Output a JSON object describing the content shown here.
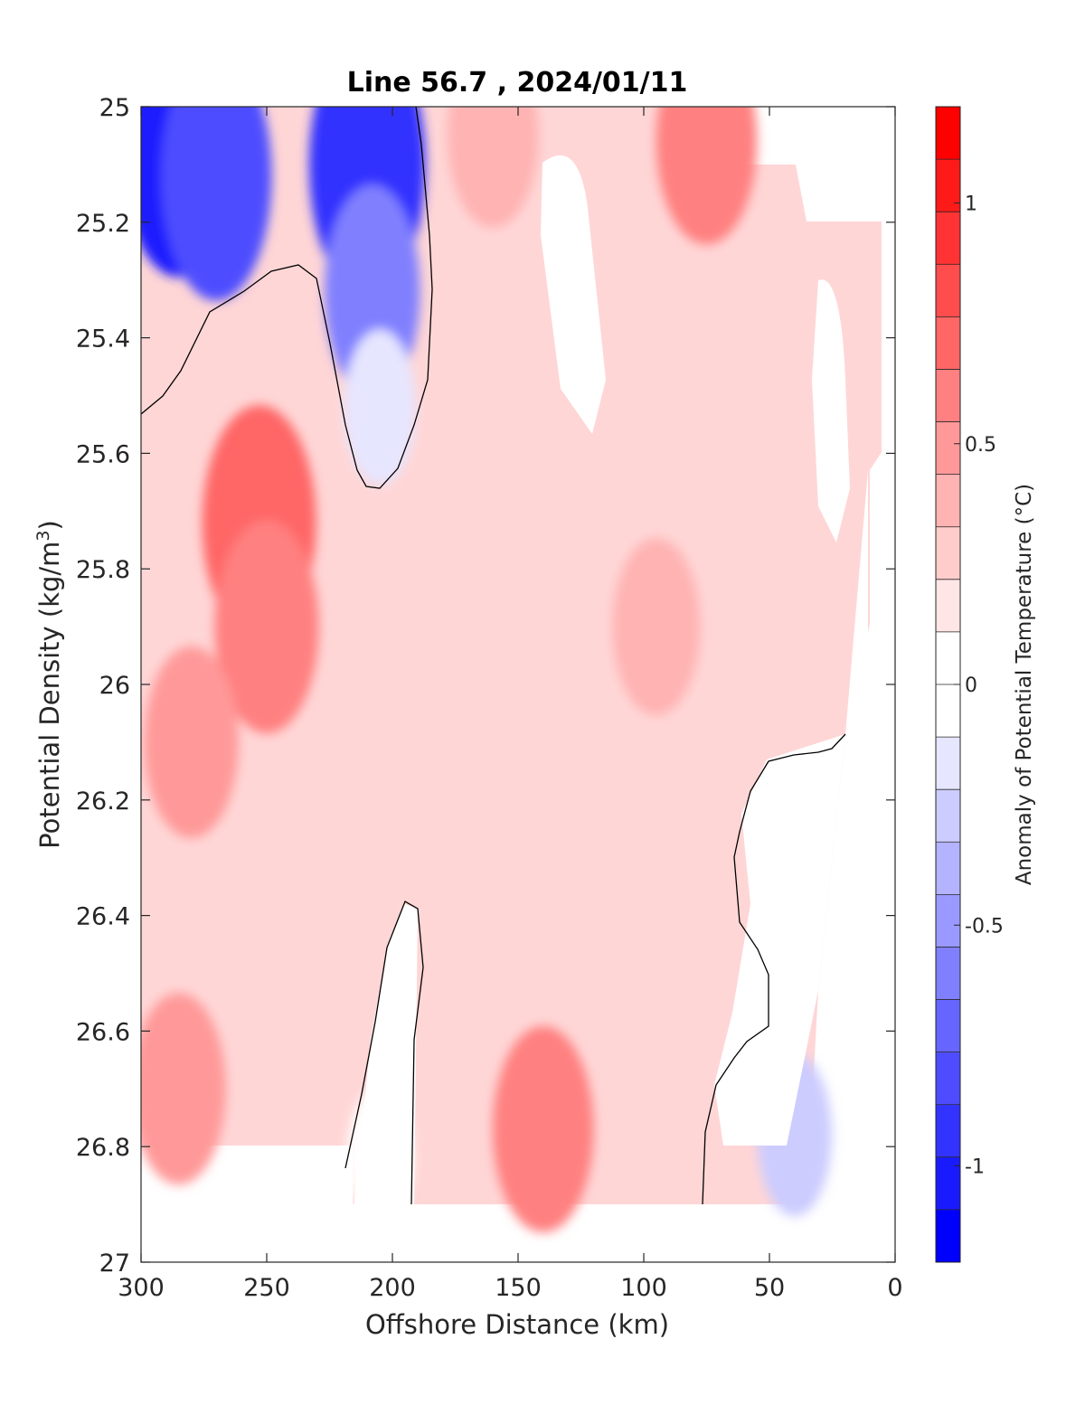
{
  "chart_data": {
    "type": "heatmap",
    "title": "Line 56.7 , 2024/01/11",
    "xlabel": "Offshore Distance (km)",
    "ylabel_main": "Potential Density (kg/m",
    "ylabel_sup": "3",
    "ylabel_close": ")",
    "colorbar_label": "Anomaly of Potential Temperature (°C)",
    "xlim": [
      300,
      0
    ],
    "ylim": [
      25,
      27
    ],
    "x_reversed": true,
    "y_reversed": true,
    "xticks": [
      300,
      250,
      200,
      150,
      100,
      50,
      0
    ],
    "xtick_labels": [
      "300",
      "250",
      "200",
      "150",
      "100",
      "50",
      "0"
    ],
    "yticks": [
      25,
      25.2,
      25.4,
      25.6,
      25.8,
      26,
      26.2,
      26.4,
      26.6,
      26.8,
      27
    ],
    "ytick_labels": [
      "25",
      "25.2",
      "25.4",
      "25.6",
      "25.8",
      "26",
      "26.2",
      "26.4",
      "26.6",
      "26.8",
      "27"
    ],
    "colorbar": {
      "range": [
        -1.2,
        1.2
      ],
      "levels_step": 0.1,
      "ticks": [
        1,
        0.5,
        0,
        -0.5,
        -1
      ],
      "tick_labels": [
        "1",
        "0.5",
        "0",
        "-0.5",
        "-1"
      ],
      "colors": [
        "#0000ff",
        "#1a1aff",
        "#3333ff",
        "#4d4dff",
        "#6666ff",
        "#8080ff",
        "#9999ff",
        "#b3b3ff",
        "#ccccff",
        "#e6e6ff",
        "#ffffff",
        "#ffffff",
        "#ffe6e6",
        "#ffcccc",
        "#ffb3b3",
        "#ff9999",
        "#ff8080",
        "#ff6666",
        "#ff4d4d",
        "#ff3333",
        "#ff1a1a",
        "#ff0000"
      ]
    },
    "zero_contour": true,
    "grid": false,
    "features": [
      {
        "kind": "cold",
        "x": 285,
        "y": 25.06,
        "value": -1.0
      },
      {
        "kind": "cold",
        "x": 270,
        "y": 25.12,
        "value": -0.85
      },
      {
        "kind": "cold",
        "x": 210,
        "y": 25.1,
        "value": -0.95
      },
      {
        "kind": "cold",
        "x": 208,
        "y": 25.32,
        "value": -0.6
      },
      {
        "kind": "cold",
        "x": 205,
        "y": 25.52,
        "value": -0.2
      },
      {
        "kind": "warm",
        "x": 253,
        "y": 25.72,
        "value": 0.75
      },
      {
        "kind": "warm",
        "x": 250,
        "y": 25.9,
        "value": 0.6
      },
      {
        "kind": "warm",
        "x": 280,
        "y": 26.1,
        "value": 0.45
      },
      {
        "kind": "warm",
        "x": 285,
        "y": 26.7,
        "value": 0.45
      },
      {
        "kind": "warm",
        "x": 140,
        "y": 26.77,
        "value": 0.55
      },
      {
        "kind": "warm",
        "x": 75,
        "y": 25.06,
        "value": 0.55
      },
      {
        "kind": "warm",
        "x": 160,
        "y": 25.05,
        "value": 0.4
      },
      {
        "kind": "warm",
        "x": 95,
        "y": 25.9,
        "value": 0.35
      },
      {
        "kind": "cold",
        "x": 40,
        "y": 26.78,
        "value": -0.25
      },
      {
        "kind": "cold",
        "x": 205,
        "y": 26.82,
        "value": -0.1
      }
    ]
  }
}
